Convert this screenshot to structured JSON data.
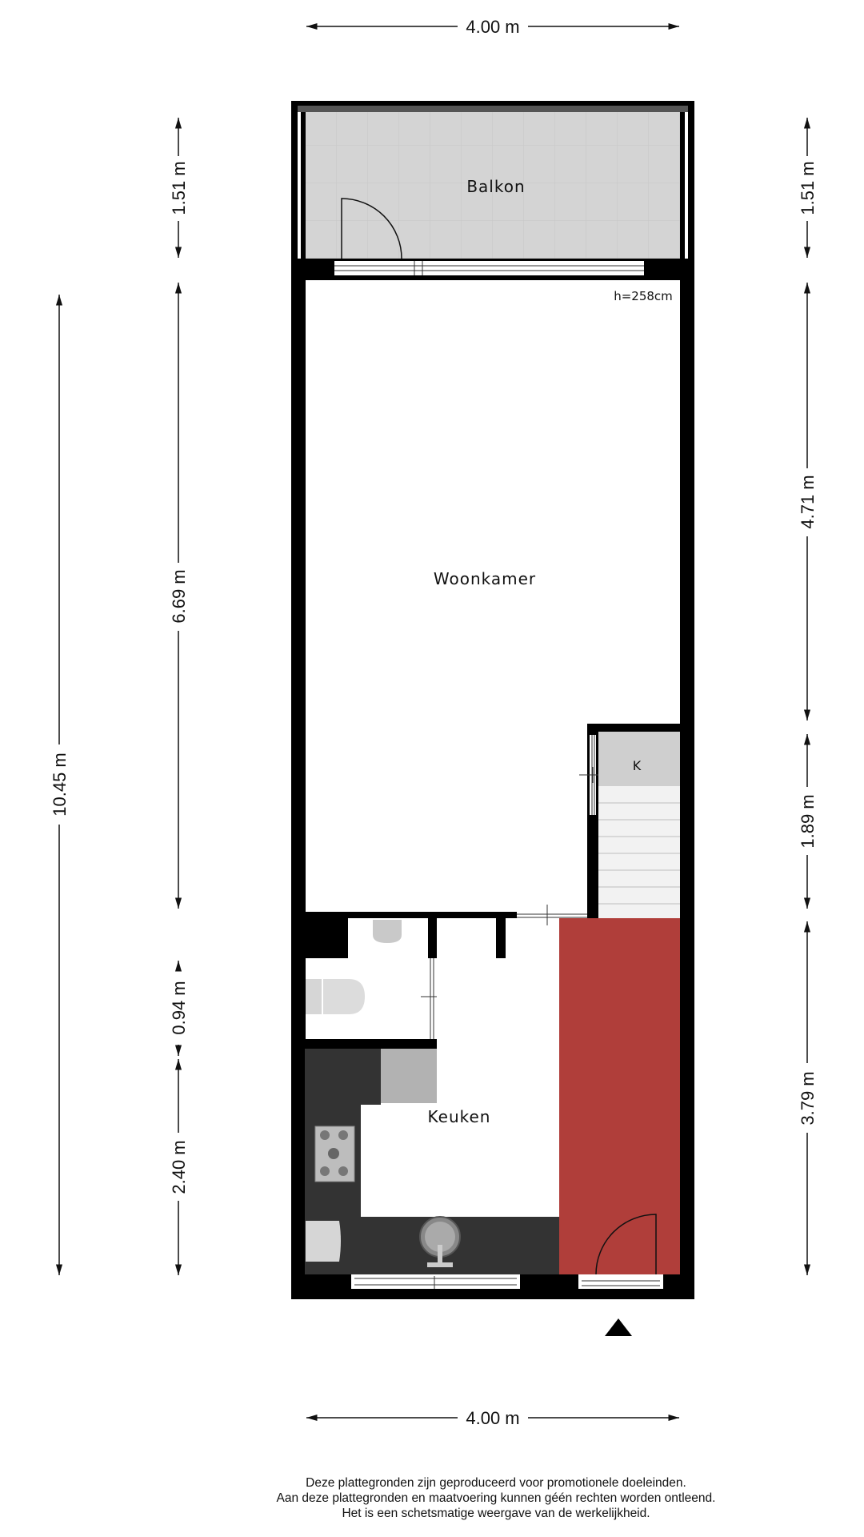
{
  "rooms": {
    "balkon": "Balkon",
    "woonkamer": "Woonkamer",
    "keuken": "Keuken",
    "kast": "K"
  },
  "ceiling_height": "h=258cm",
  "dimensions": {
    "top_width": "4.00 m",
    "bottom_width": "4.00 m",
    "left_total": "10.45 m",
    "left_balkon": "1.51 m",
    "left_woonkamer": "6.69 m",
    "left_toilet": "0.94 m",
    "left_keuken": "2.40 m",
    "right_balkon": "1.51 m",
    "right_woonkamer": "4.71 m",
    "right_stair": "1.89 m",
    "right_hall": "3.79 m"
  },
  "disclaimer": [
    "Deze plattegronden zijn geproduceerd voor promotionele doeleinden.",
    "Aan deze plattegronden en maatvoering kunnen géén rechten worden ontleend.",
    "Het is een schetsmatige weergave van de werkelijkheid."
  ],
  "colors": {
    "wall": "#000000",
    "hall_highlight": "#b03e3a",
    "balcony_floor": "#d4d4d4",
    "kitchen_counter": "#333333"
  },
  "icons": [
    "entrance-arrow-icon",
    "stove-icon",
    "sink-icon",
    "toilet-icon",
    "washbasin-icon"
  ]
}
